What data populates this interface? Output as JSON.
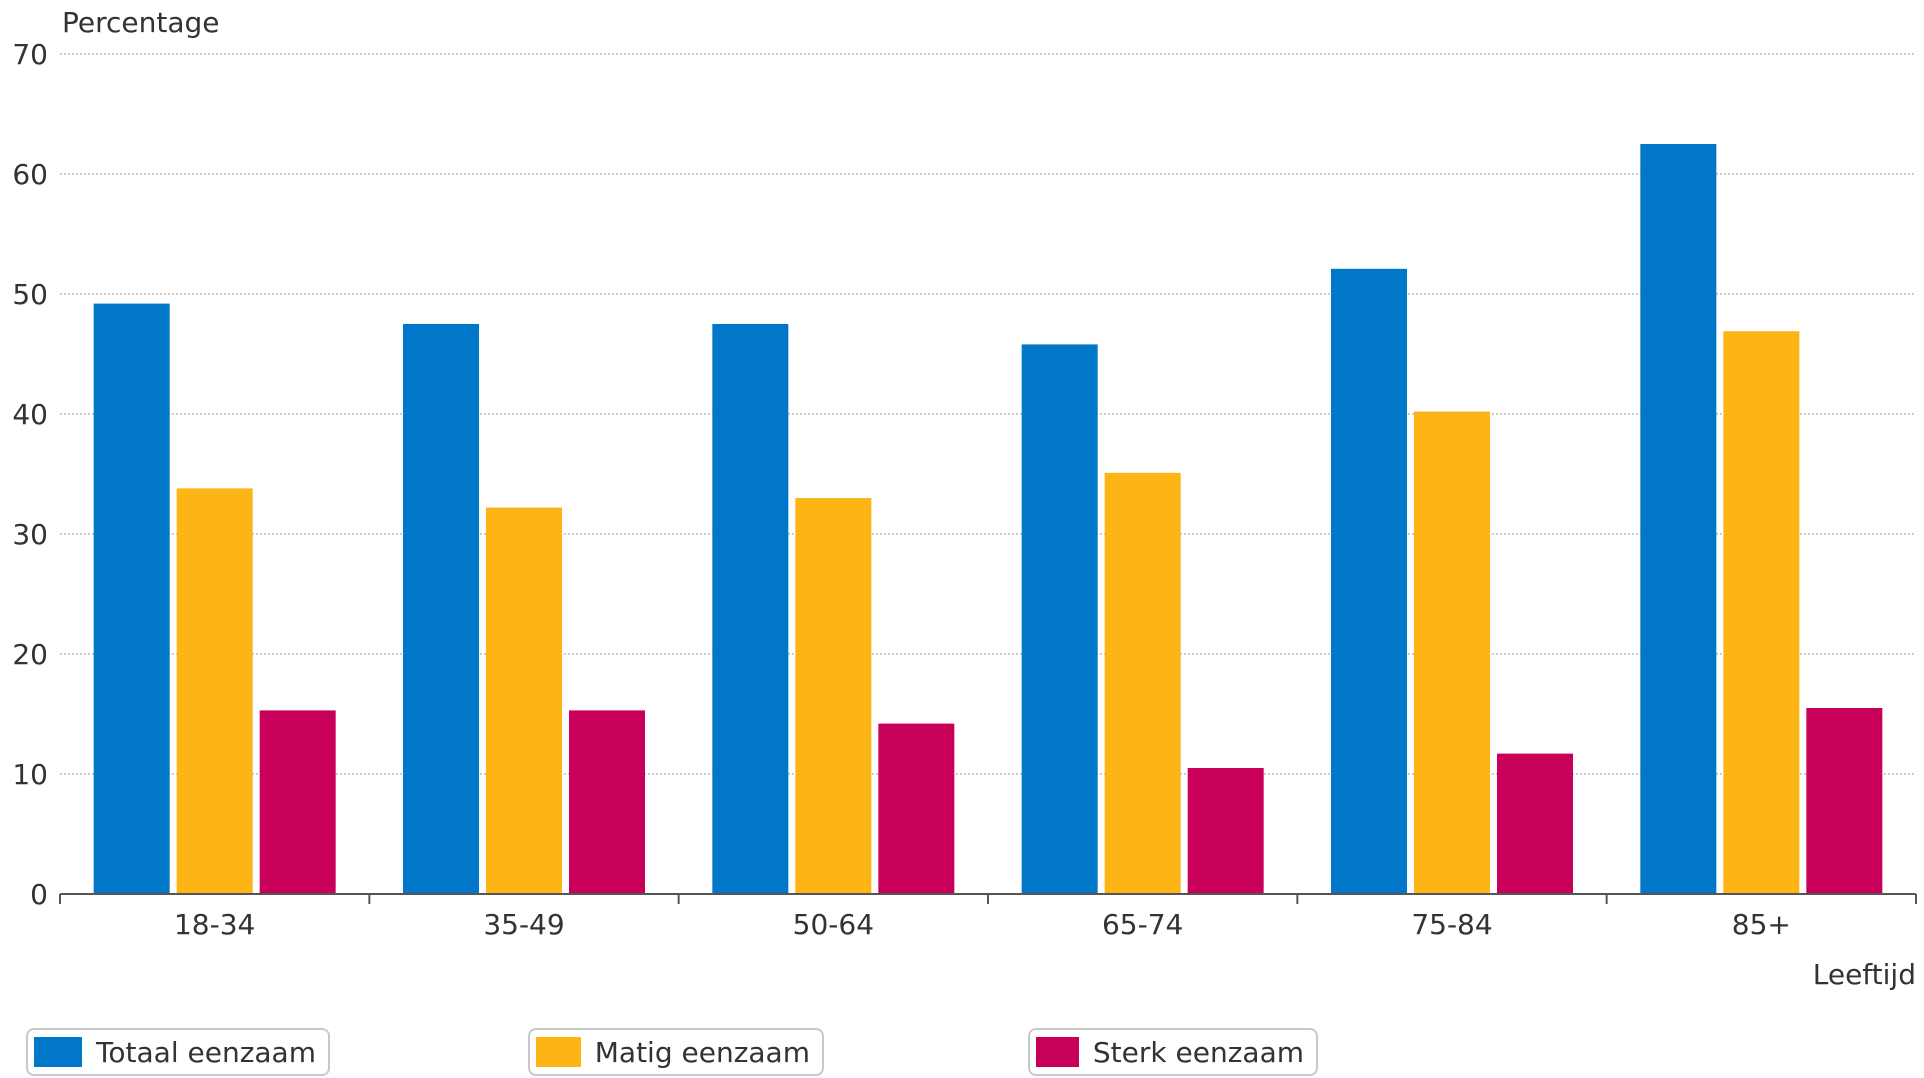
{
  "chart_data": {
    "type": "bar",
    "ylabel": "Percentage",
    "xlabel": "Leeftijd",
    "categories": [
      "18-34",
      "35-49",
      "50-64",
      "65-74",
      "75-84",
      "85+"
    ],
    "ylim": [
      0,
      70
    ],
    "yticks": [
      0,
      10,
      20,
      30,
      40,
      50,
      60,
      70
    ],
    "grid": true,
    "legend_position": "bottom",
    "series": [
      {
        "name": "Totaal eenzaam",
        "color": "#0077c8",
        "values": [
          49.2,
          47.5,
          47.5,
          45.8,
          52.1,
          62.5
        ]
      },
      {
        "name": "Matig eenzaam",
        "color": "#fdb515",
        "values": [
          33.8,
          32.2,
          33.0,
          35.1,
          40.2,
          46.9
        ]
      },
      {
        "name": "Sterk eenzaam",
        "color": "#c8005a",
        "values": [
          15.3,
          15.3,
          14.2,
          10.5,
          11.7,
          15.5
        ]
      }
    ]
  }
}
